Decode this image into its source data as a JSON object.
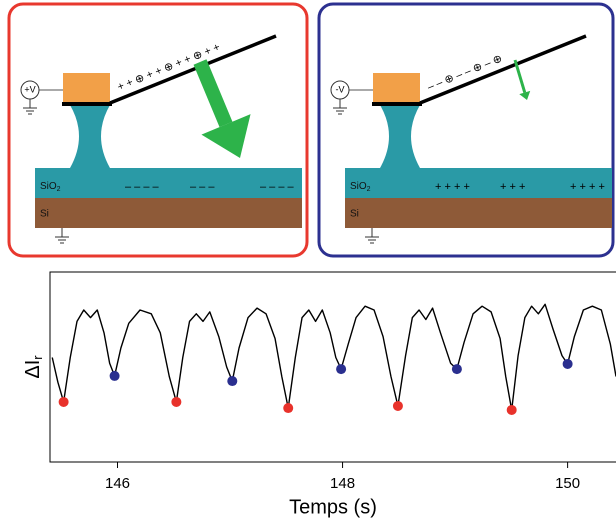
{
  "schematics": [
    {
      "voltage": "+V",
      "oxide": "SiO",
      "oxide_sub": "2",
      "substrate": "Si",
      "tip_charges": "+  +  ⊕  +  +  ⊕  +  +  ⊕  +  +",
      "surface_charges": [
        "– – –  –",
        "– –   –",
        "– – –  –"
      ]
    },
    {
      "voltage": "-V",
      "oxide": "SiO",
      "oxide_sub": "2",
      "substrate": "Si",
      "tip_charges": "–  –  ⊕  –  –  ⊕  –  ⊕",
      "surface_charges": [
        "+ + +  +",
        "+ +   +",
        "+ + +  +"
      ]
    }
  ],
  "chart_data": {
    "type": "line",
    "x_label": "Temps (s)",
    "y_label": "ΔI",
    "y_label_sub": "r",
    "xlim": [
      145.4,
      150.43
    ],
    "xticks": [
      146,
      148,
      150
    ],
    "ylim": [
      0,
      1
    ],
    "series": [
      {
        "color": "#000000",
        "x": [
          145.42,
          145.47,
          145.521,
          145.58,
          145.64,
          145.7,
          145.76,
          145.82,
          145.88,
          145.93,
          145.974,
          146.03,
          146.1,
          146.2,
          146.3,
          146.38,
          146.46,
          146.523,
          146.58,
          146.64,
          146.7,
          146.76,
          146.82,
          146.9,
          146.97,
          147.02,
          147.08,
          147.16,
          147.24,
          147.32,
          147.4,
          147.46,
          147.517,
          147.58,
          147.64,
          147.7,
          147.76,
          147.82,
          147.89,
          147.94,
          147.987,
          148.05,
          148.12,
          148.2,
          148.28,
          148.36,
          148.43,
          148.492,
          148.56,
          148.62,
          148.68,
          148.74,
          148.8,
          148.87,
          148.96,
          149.016,
          149.08,
          149.16,
          149.24,
          149.32,
          149.4,
          149.45,
          149.503,
          149.56,
          149.62,
          149.68,
          149.74,
          149.8,
          149.87,
          149.95,
          150.0,
          150.06,
          150.14,
          150.22,
          150.3,
          150.38,
          150.43
        ],
        "values": [
          0.55,
          0.42,
          0.316,
          0.55,
          0.74,
          0.8,
          0.76,
          0.8,
          0.68,
          0.52,
          0.453,
          0.6,
          0.73,
          0.8,
          0.78,
          0.68,
          0.45,
          0.316,
          0.55,
          0.74,
          0.78,
          0.74,
          0.79,
          0.66,
          0.5,
          0.426,
          0.6,
          0.76,
          0.81,
          0.78,
          0.65,
          0.45,
          0.284,
          0.55,
          0.76,
          0.8,
          0.74,
          0.8,
          0.68,
          0.55,
          0.489,
          0.62,
          0.76,
          0.82,
          0.8,
          0.66,
          0.45,
          0.295,
          0.56,
          0.76,
          0.8,
          0.75,
          0.81,
          0.68,
          0.52,
          0.489,
          0.63,
          0.78,
          0.82,
          0.79,
          0.65,
          0.45,
          0.274,
          0.56,
          0.76,
          0.82,
          0.78,
          0.83,
          0.7,
          0.56,
          0.516,
          0.66,
          0.8,
          0.82,
          0.8,
          0.62,
          0.45
        ]
      },
      {
        "type": "scatter",
        "color": "#e8322b",
        "x": [
          145.521,
          146.523,
          147.517,
          148.492,
          149.503
        ],
        "values": [
          0.316,
          0.316,
          0.284,
          0.295,
          0.274
        ]
      },
      {
        "type": "scatter",
        "color": "#2a2f8f",
        "x": [
          145.974,
          147.02,
          147.987,
          149.016,
          150.0
        ],
        "values": [
          0.453,
          0.426,
          0.489,
          0.489,
          0.516
        ]
      }
    ]
  }
}
